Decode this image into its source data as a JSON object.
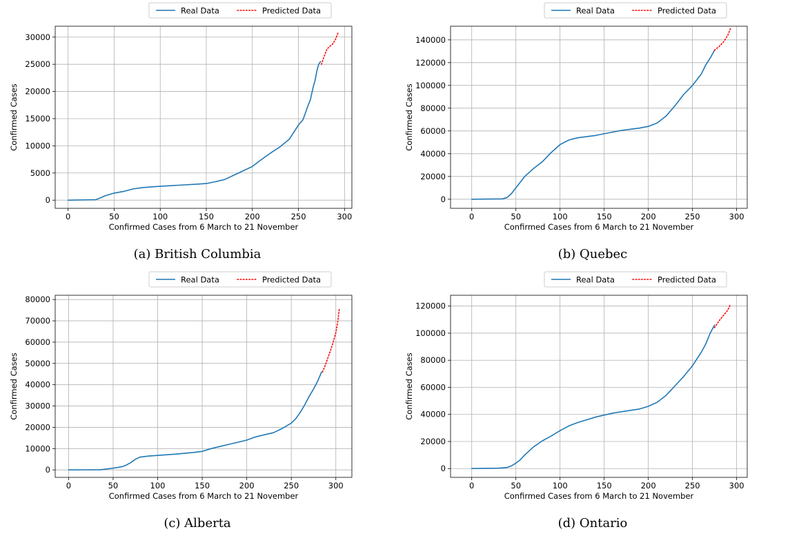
{
  "colors": {
    "real": "#1f77b4",
    "predicted": "#ff0000",
    "grid": "#b0b0b0",
    "axis": "#000000"
  },
  "legend": {
    "real_label": "Real Data",
    "predicted_label": "Predicted Data",
    "placement": "top-right (above axes)"
  },
  "chart_data": [
    {
      "type": "line",
      "caption": "(a) British Columbia",
      "xlabel": "Confirmed Cases from 6 March to 21 November",
      "ylabel": "Confirmed Cases",
      "xlim": [
        -14,
        308
      ],
      "ylim": [
        -1500,
        32000
      ],
      "xticks": [
        0,
        50,
        100,
        150,
        200,
        250,
        300
      ],
      "yticks": [
        0,
        5000,
        10000,
        15000,
        20000,
        25000,
        30000
      ],
      "ytick_labels": [
        "0",
        "5000",
        "10000",
        "15000",
        "20000",
        "25000",
        "30000"
      ],
      "grid": true,
      "series": [
        {
          "name": "Real Data",
          "style": "solid",
          "x": [
            0,
            30,
            35,
            40,
            45,
            50,
            60,
            70,
            80,
            90,
            100,
            120,
            140,
            150,
            160,
            170,
            180,
            190,
            200,
            210,
            220,
            230,
            240,
            250,
            255,
            260,
            263,
            266,
            268,
            270,
            272,
            274
          ],
          "y": [
            0,
            100,
            400,
            800,
            1050,
            1300,
            1600,
            2050,
            2300,
            2450,
            2550,
            2750,
            2950,
            3050,
            3400,
            3800,
            4600,
            5400,
            6200,
            7500,
            8700,
            9800,
            11200,
            13800,
            14800,
            17200,
            18500,
            20800,
            22000,
            23800,
            25000,
            25500
          ]
        },
        {
          "name": "Predicted Data",
          "style": "dotted",
          "x": [
            275,
            278,
            281,
            284,
            287,
            290,
            293
          ],
          "y": [
            25000,
            26500,
            27800,
            28300,
            28700,
            29500,
            30800
          ]
        }
      ]
    },
    {
      "type": "line",
      "caption": "(b) Quebec",
      "xlabel": "Confirmed Cases from 6 March to 21 November",
      "ylabel": "Confirmed Cases",
      "xlim": [
        -24,
        312
      ],
      "ylim": [
        -8000,
        152000
      ],
      "xticks": [
        0,
        50,
        100,
        150,
        200,
        250,
        300
      ],
      "yticks": [
        0,
        20000,
        40000,
        60000,
        80000,
        100000,
        120000,
        140000
      ],
      "ytick_labels": [
        "0",
        "20000",
        "40000",
        "60000",
        "80000",
        "100000",
        "120000",
        "140000"
      ],
      "grid": true,
      "series": [
        {
          "name": "Real Data",
          "style": "solid",
          "x": [
            0,
            35,
            40,
            45,
            50,
            55,
            60,
            70,
            80,
            90,
            100,
            110,
            120,
            130,
            140,
            150,
            160,
            170,
            180,
            190,
            200,
            210,
            220,
            230,
            240,
            250,
            260,
            265,
            270,
            275
          ],
          "y": [
            0,
            300,
            1500,
            5000,
            10000,
            15000,
            20000,
            27000,
            33000,
            41000,
            48000,
            52000,
            54000,
            55000,
            56000,
            57500,
            59000,
            60500,
            61500,
            62500,
            64000,
            67000,
            73000,
            82000,
            92000,
            100000,
            110000,
            118000,
            124000,
            131000
          ]
        },
        {
          "name": "Predicted Data",
          "style": "dotted",
          "x": [
            275,
            280,
            285,
            290,
            293
          ],
          "y": [
            131000,
            134000,
            138000,
            144000,
            150000
          ]
        }
      ]
    },
    {
      "type": "line",
      "caption": "(c) Alberta",
      "xlabel": "Confirmed Cases from 6 March to 21 November",
      "ylabel": "Confirmed Cases",
      "xlim": [
        -15,
        318
      ],
      "ylim": [
        -3500,
        82000
      ],
      "xticks": [
        0,
        50,
        100,
        150,
        200,
        250,
        300
      ],
      "yticks": [
        0,
        10000,
        20000,
        30000,
        40000,
        50000,
        60000,
        70000,
        80000
      ],
      "ytick_labels": [
        "0",
        "10000",
        "20000",
        "30000",
        "40000",
        "50000",
        "60000",
        "70000",
        "80000"
      ],
      "grid": true,
      "series": [
        {
          "name": "Real Data",
          "style": "solid",
          "x": [
            0,
            35,
            40,
            50,
            60,
            65,
            70,
            75,
            80,
            90,
            100,
            120,
            140,
            150,
            160,
            170,
            180,
            190,
            200,
            210,
            220,
            230,
            240,
            250,
            255,
            260,
            265,
            270,
            275,
            280,
            284
          ],
          "y": [
            0,
            100,
            300,
            800,
            1500,
            2300,
            3500,
            5000,
            6000,
            6500,
            6800,
            7400,
            8200,
            8700,
            10000,
            11000,
            12000,
            13000,
            14000,
            15500,
            16500,
            17500,
            19500,
            22000,
            24000,
            27000,
            30500,
            34500,
            38000,
            42000,
            46000
          ]
        },
        {
          "name": "Predicted Data",
          "style": "dotted",
          "x": [
            285,
            288,
            291,
            294,
            297,
            300,
            302,
            304
          ],
          "y": [
            46000,
            49000,
            52500,
            56000,
            60000,
            64500,
            69000,
            76000
          ]
        }
      ]
    },
    {
      "type": "line",
      "caption": "(d) Ontario",
      "xlabel": "Confirmed Cases from 6 March to 21 November",
      "ylabel": "Confirmed Cases",
      "xlim": [
        -24,
        312
      ],
      "ylim": [
        -6500,
        128000
      ],
      "xticks": [
        0,
        50,
        100,
        150,
        200,
        250,
        300
      ],
      "yticks": [
        0,
        20000,
        40000,
        60000,
        80000,
        100000,
        120000
      ],
      "ytick_labels": [
        "0",
        "20000",
        "40000",
        "60000",
        "80000",
        "100000",
        "120000"
      ],
      "grid": true,
      "series": [
        {
          "name": "Real Data",
          "style": "solid",
          "x": [
            0,
            30,
            40,
            45,
            50,
            55,
            60,
            70,
            80,
            90,
            100,
            110,
            120,
            130,
            140,
            150,
            160,
            170,
            180,
            190,
            200,
            210,
            220,
            230,
            240,
            250,
            260,
            265,
            270,
            275
          ],
          "y": [
            0,
            300,
            800,
            2000,
            4000,
            6500,
            10000,
            16000,
            20500,
            24000,
            28000,
            31500,
            34000,
            36000,
            38000,
            39500,
            41000,
            42000,
            43000,
            44000,
            46000,
            49000,
            54000,
            61000,
            68000,
            76000,
            86000,
            92000,
            100000,
            106000
          ]
        },
        {
          "name": "Predicted Data",
          "style": "dotted",
          "x": [
            275,
            280,
            285,
            290,
            293
          ],
          "y": [
            104000,
            109000,
            113000,
            117000,
            121500
          ]
        }
      ]
    }
  ]
}
